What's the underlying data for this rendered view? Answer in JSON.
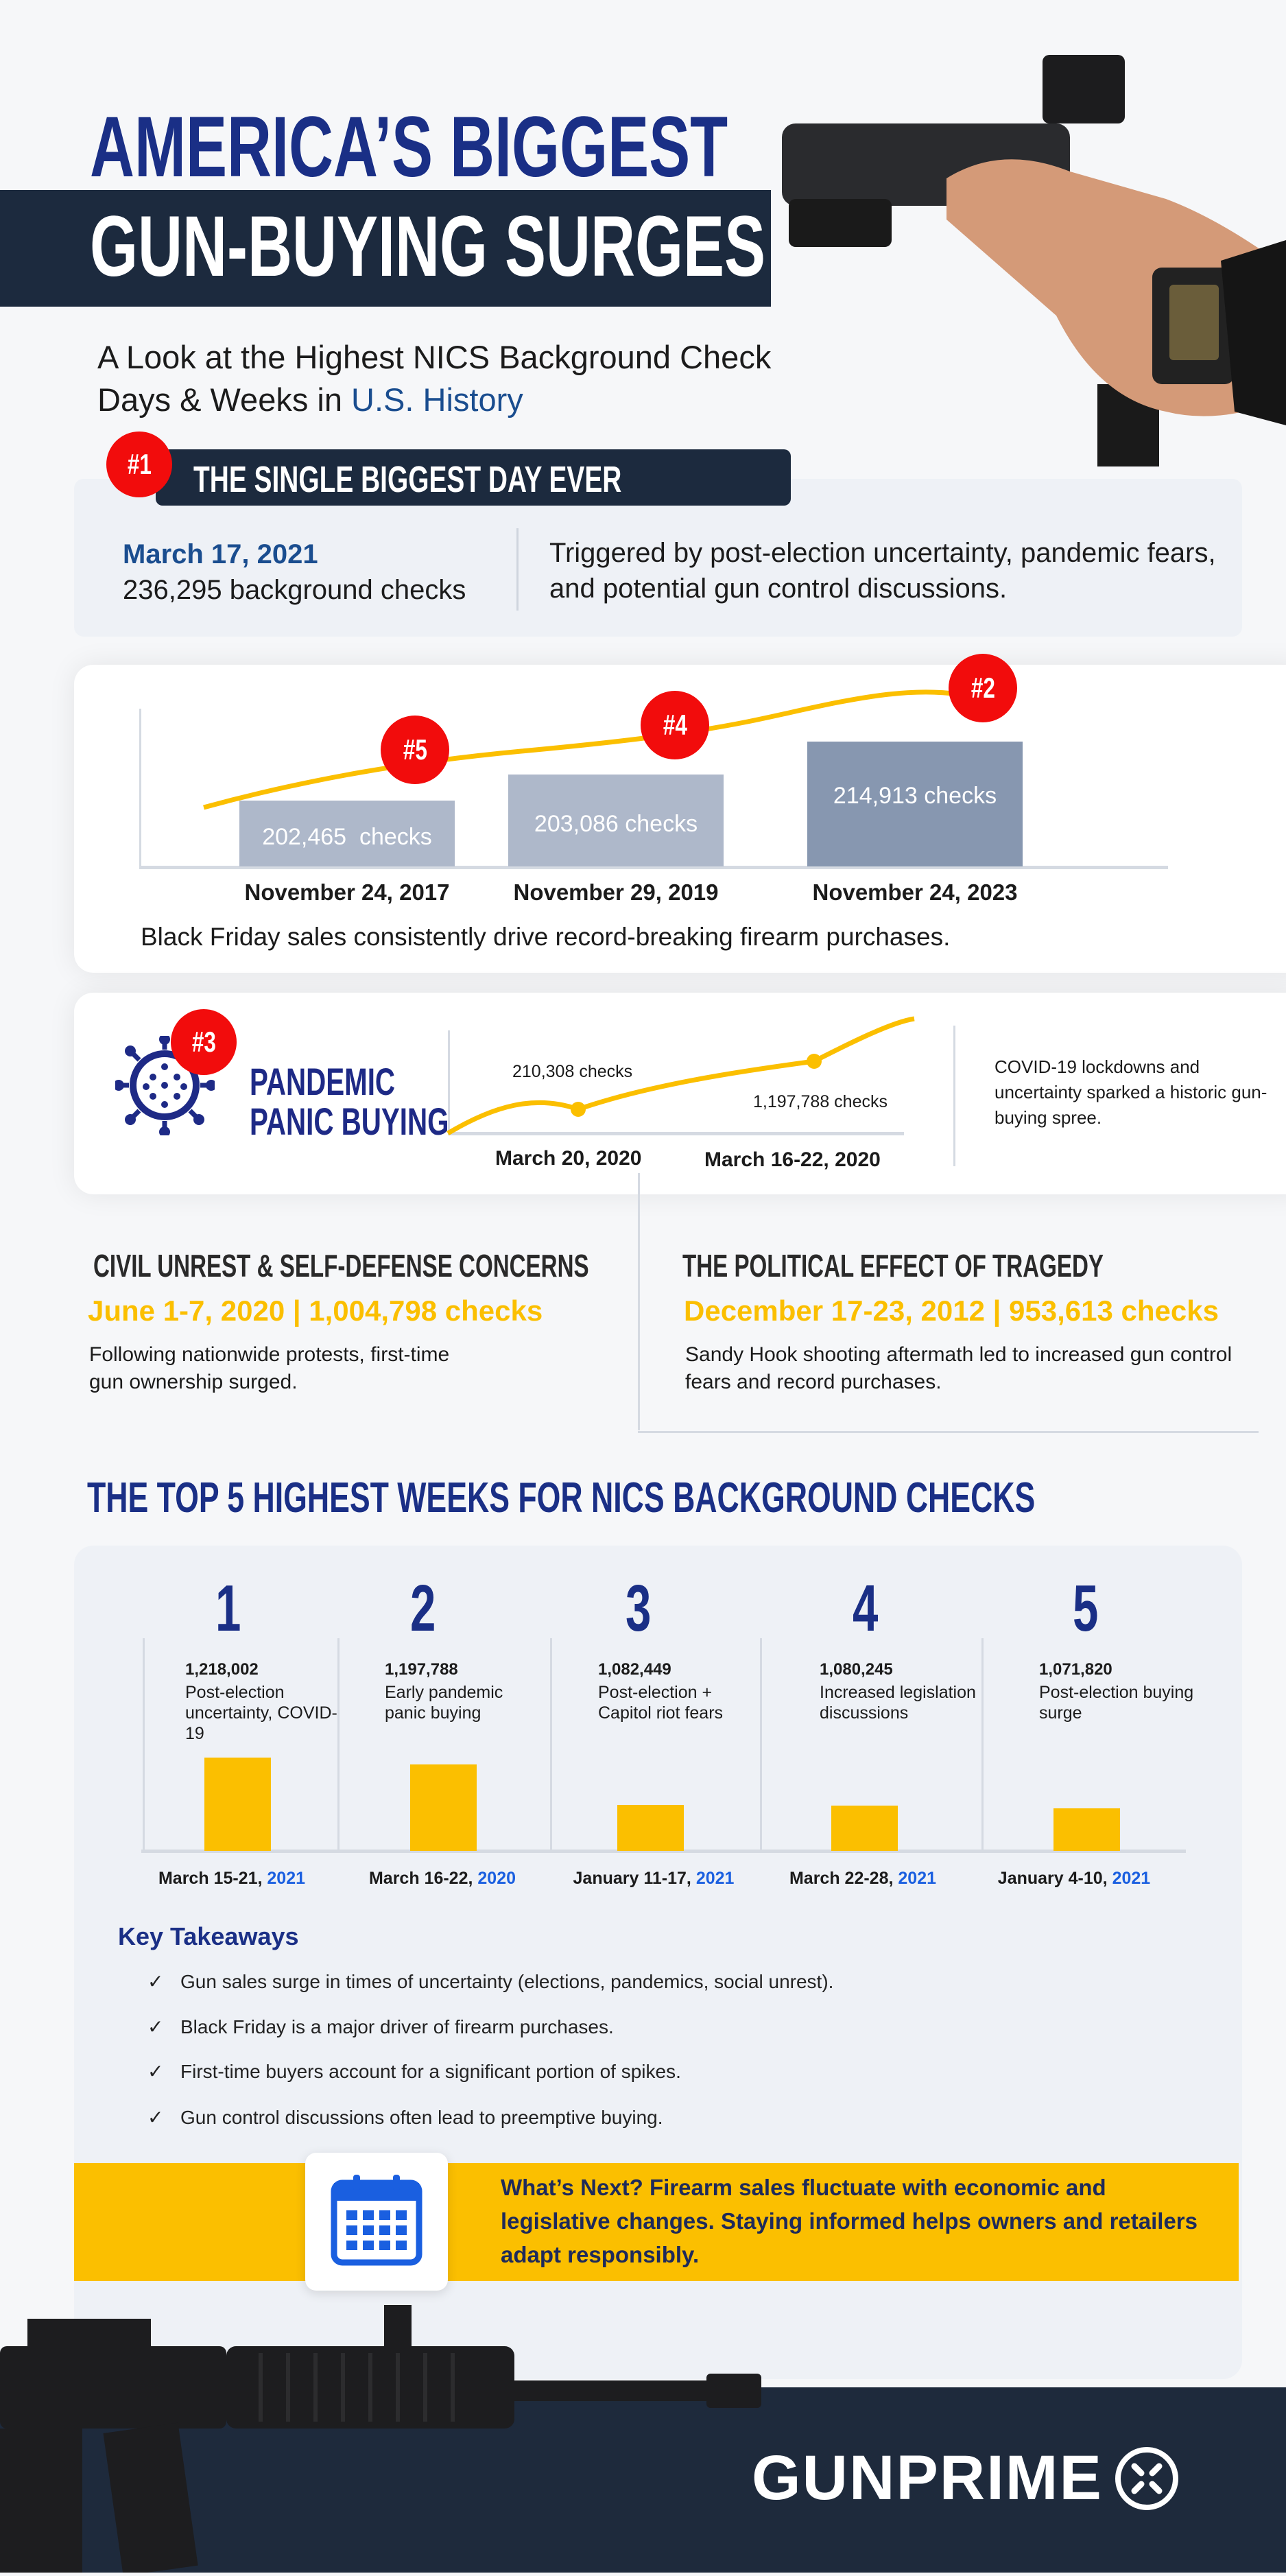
{
  "header": {
    "title_line1": "AMERICA’S BIGGEST",
    "title_line2": "GUN-BUYING SURGES",
    "subtitle_line1": "A Look at the Highest NICS Background Check",
    "subtitle_line2_prefix": "Days & Weeks in ",
    "subtitle_line2_highlight": "U.S. History"
  },
  "biggest_day": {
    "badge": "#1",
    "heading": "THE SINGLE BIGGEST DAY EVER",
    "date": "March 17, 2021",
    "checks": "236,295 background checks",
    "description": "Triggered by post-election uncertainty, pandemic fears, and potential gun control discussions."
  },
  "black_friday": {
    "caption": "Black Friday sales consistently drive record-breaking firearm purchases.",
    "bars": [
      {
        "rank": "#5",
        "date": "November 24, 2017",
        "label": "202,465  checks",
        "value": 202465,
        "color": "#aeb8ca"
      },
      {
        "rank": "#4",
        "date": "November 29, 2019",
        "label": "203,086 checks",
        "value": 203086,
        "color": "#aeb8ca"
      },
      {
        "rank": "#2",
        "date": "November 24, 2023",
        "label": "214,913 checks",
        "value": 214913,
        "color": "#8797b0"
      }
    ]
  },
  "pandemic": {
    "badge": "#3",
    "title_line1": "PANDEMIC",
    "title_line2": "PANIC BUYING",
    "point1_label": "210,308 checks",
    "point2_label": "1,197,788 checks",
    "date1": "March 20, 2020",
    "date2": "March 16-22, 2020",
    "description": "COVID-19 lockdowns and uncertainty sparked a historic gun-buying spree."
  },
  "civil_unrest": {
    "heading": "CIVIL UNREST & SELF-DEFENSE CONCERNS",
    "stat": "June 1-7, 2020 | 1,004,798 checks",
    "body": "Following nationwide protests, first-time gun ownership surged."
  },
  "tragedy": {
    "heading": "THE POLITICAL EFFECT OF TRAGEDY",
    "stat": "December 17-23, 2012 | 953,613 checks",
    "body": "Sandy Hook shooting aftermath led to increased gun control fears and record purchases."
  },
  "top5": {
    "heading": "THE TOP 5 HIGHEST WEEKS FOR NICS BACKGROUND CHECKS",
    "weeks": [
      {
        "rank": "1",
        "value": "1,218,002",
        "checks": 1218002,
        "desc": "Post-election uncertainty, COVID-19",
        "date": "March 15-21, ",
        "year": "2021"
      },
      {
        "rank": "2",
        "value": "1,197,788",
        "checks": 1197788,
        "desc": "Early pandemic panic buying",
        "date": "March 16-22, ",
        "year": "2020"
      },
      {
        "rank": "3",
        "value": "1,082,449",
        "checks": 1082449,
        "desc": "Post-election + Capitol riot fears",
        "date": "January 11-17, ",
        "year": "2021"
      },
      {
        "rank": "4",
        "value": "1,080,245",
        "checks": 1080245,
        "desc": "Increased legislation discussions",
        "date": "March 22-28, ",
        "year": "2021"
      },
      {
        "rank": "5",
        "value": "1,071,820",
        "checks": 1071820,
        "desc": "Post-election buying surge",
        "date": "January 4-10, ",
        "year": "2021"
      }
    ]
  },
  "takeaways": {
    "heading": "Key Takeaways",
    "check_icon": "✓",
    "items": [
      "Gun sales surge in times of uncertainty (elections, pandemics, social unrest).",
      "Black Friday is a major driver of firearm purchases.",
      "First-time buyers account for a significant portion of spikes.",
      "Gun control discussions often lead to preemptive buying."
    ]
  },
  "banner": {
    "icon": "calendar-icon",
    "text": "What’s Next? Firearm sales fluctuate with economic and legislative changes. Staying informed helps owners and retailers adapt responsibly."
  },
  "footer": {
    "brand": "GUNPRIME"
  },
  "colors": {
    "navy": "#1a2f86",
    "dark_band": "#1c2a3e",
    "red": "#f20c0c",
    "yellow": "#fbbf00",
    "blue_accent": "#1a5fe0",
    "panel": "#eef1f6"
  }
}
